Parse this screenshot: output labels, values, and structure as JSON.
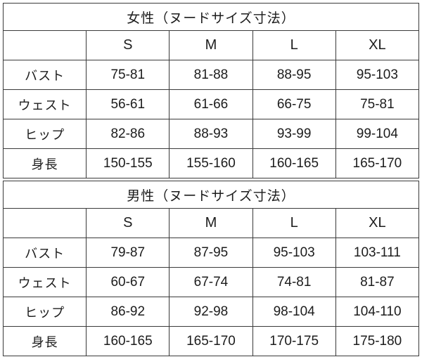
{
  "chart_data": [
    {
      "type": "table",
      "title": "女性（ヌードサイズ寸法）",
      "columns": [
        "",
        "S",
        "M",
        "L",
        "XL"
      ],
      "rows": [
        [
          "バスト",
          "75-81",
          "81-88",
          "88-95",
          "95-103"
        ],
        [
          "ウェスト",
          "56-61",
          "61-66",
          "66-75",
          "75-81"
        ],
        [
          "ヒップ",
          "82-86",
          "88-93",
          "93-99",
          "99-104"
        ],
        [
          "身長",
          "150-155",
          "155-160",
          "160-165",
          "165-170"
        ]
      ]
    },
    {
      "type": "table",
      "title": "男性（ヌードサイズ寸法）",
      "columns": [
        "",
        "S",
        "M",
        "L",
        "XL"
      ],
      "rows": [
        [
          "バスト",
          "79-87",
          "87-95",
          "95-103",
          "103-111"
        ],
        [
          "ウェスト",
          "60-67",
          "67-74",
          "74-81",
          "81-87"
        ],
        [
          "ヒップ",
          "86-92",
          "92-98",
          "98-104",
          "104-110"
        ],
        [
          "身長",
          "160-165",
          "165-170",
          "170-175",
          "175-180"
        ]
      ]
    }
  ],
  "colors": {
    "border": "#3a3a3a",
    "text": "#1c1c1c",
    "background": "#ffffff"
  }
}
